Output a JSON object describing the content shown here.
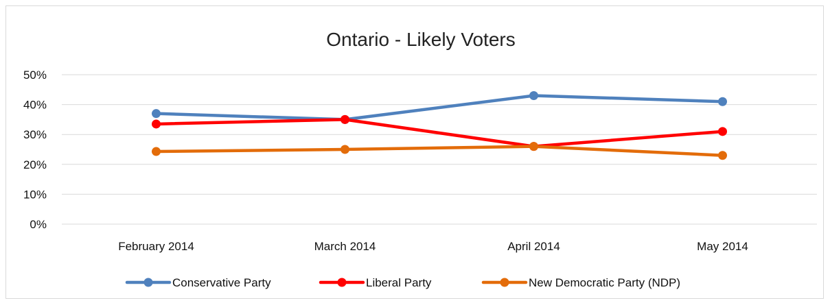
{
  "chart_data": {
    "type": "line",
    "title": "Ontario - Likely Voters",
    "xlabel": "",
    "ylabel": "",
    "categories": [
      "February 2014",
      "March 2014",
      "April 2014",
      "May 2014"
    ],
    "ylim": [
      0,
      50
    ],
    "yticks": [
      "0%",
      "10%",
      "20%",
      "30%",
      "40%",
      "50%"
    ],
    "grid": true,
    "legend_position": "bottom",
    "series": [
      {
        "name": "Conservative Party",
        "color": "#4f81bd",
        "values": [
          37,
          35,
          43,
          41
        ]
      },
      {
        "name": "Liberal Party",
        "color": "#ff0000",
        "values": [
          33.5,
          35,
          26,
          31
        ]
      },
      {
        "name": "New Democratic Party (NDP)",
        "color": "#e36c0a",
        "values": [
          24.3,
          25,
          26,
          23
        ]
      }
    ]
  }
}
